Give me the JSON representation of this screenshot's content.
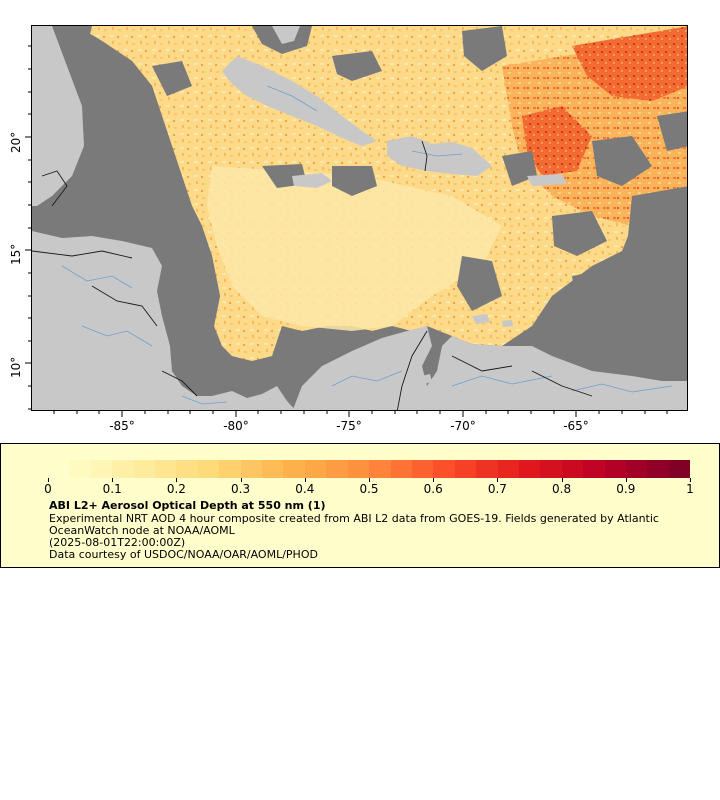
{
  "map": {
    "longitude_labels": [
      "-85°",
      "-80°",
      "-75°",
      "-70°",
      "-65°"
    ],
    "latitude_labels": [
      "20°",
      "15°",
      "10°"
    ],
    "colors": {
      "land": "#c8c8c8",
      "no_data": "#7a7a7a",
      "rivers": "#6fa0d0",
      "borders": "#1a1a1a"
    }
  },
  "legend": {
    "colorbar_labels": [
      "0",
      "0.1",
      "0.2",
      "0.3",
      "0.4",
      "0.5",
      "0.6",
      "0.7",
      "0.8",
      "0.9",
      "1"
    ],
    "colorbar_colors": [
      "#ffffcc",
      "#ffeda0",
      "#fed976",
      "#feb24c",
      "#fd8d3c",
      "#fc4e2a",
      "#e31a1c",
      "#bd0026",
      "#800026"
    ],
    "title": "ABI L2+ Aerosol Optical Depth at 550 nm (1)",
    "description": "Experimental NRT AOD 4 hour composite created from ABI L2 data from GOES-19. Fields generated by Atlantic OceanWatch node at NOAA/AOML",
    "time": "(2025-08-01T22:00:00Z)",
    "credit": "Data courtesy of USDOC/NOAA/OAR/AOML/PHOD"
  }
}
